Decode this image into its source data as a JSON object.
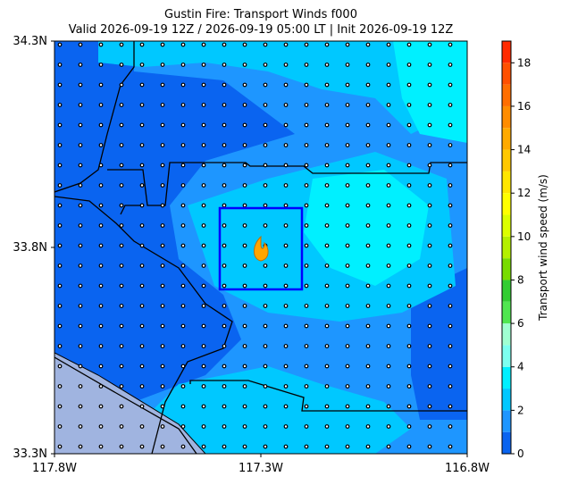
{
  "map": {
    "title_lines": [
      "Gustin Fire: Transport Winds f000",
      "Valid 2026-09-19 12Z / 2026-09-19 05:00 LT | Init 2026-09-19 12Z"
    ],
    "lat_range": [
      33.3,
      34.3
    ],
    "lon_range": [
      -117.8,
      -116.8
    ],
    "lat_ticks": [
      {
        "value": 33.3,
        "label": "33.3N"
      },
      {
        "value": 33.8,
        "label": "33.8N"
      },
      {
        "value": 34.3,
        "label": "34.3N"
      }
    ],
    "lon_ticks": [
      {
        "value": -117.8,
        "label": "117.8W"
      },
      {
        "value": -117.3,
        "label": "117.3W"
      },
      {
        "value": -116.8,
        "label": "116.8W"
      }
    ]
  },
  "colorbar": {
    "label": "Transport wind speed (m/s)",
    "lim": [
      0,
      19
    ],
    "ticks": [
      0,
      2,
      4,
      6,
      8,
      10,
      12,
      14,
      16,
      18
    ],
    "colors": [
      "#0a64f0",
      "#1e96ff",
      "#00c8ff",
      "#00f0ff",
      "#7dfff0",
      "#a0ffd2",
      "#50e650",
      "#32cd32",
      "#78dc00",
      "#b4f000",
      "#dcff00",
      "#ffff00",
      "#ffe600",
      "#ffc800",
      "#ffaa00",
      "#ff8c00",
      "#ff6e00",
      "#ff5000",
      "#ff2a00"
    ]
  }
}
